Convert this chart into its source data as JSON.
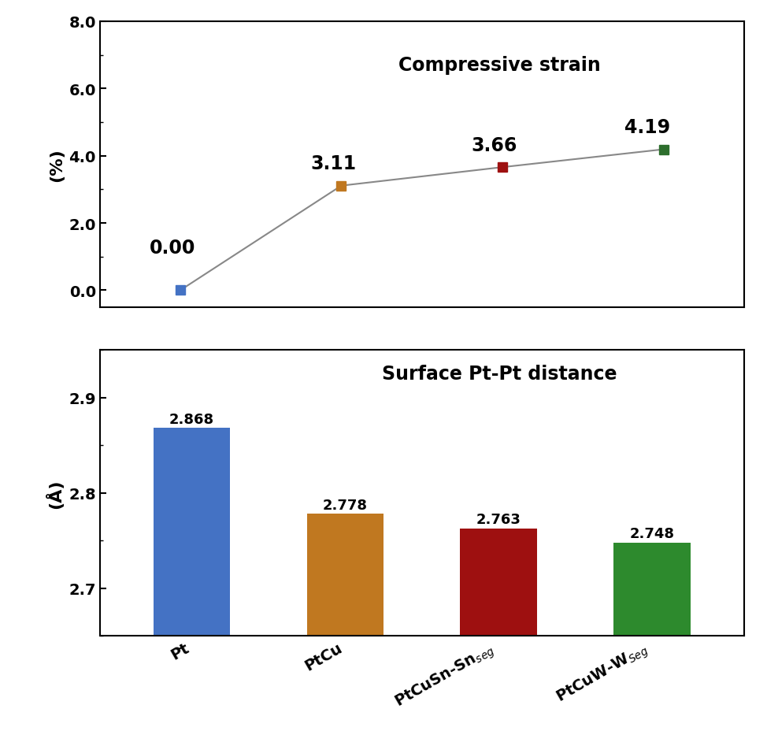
{
  "line_x": [
    0,
    1,
    2,
    3
  ],
  "line_y": [
    0.0,
    3.11,
    3.66,
    4.19
  ],
  "line_labels": [
    "0.00",
    "3.11",
    "3.66",
    "4.19"
  ],
  "line_label_offsets": [
    [
      -0.05,
      1.0
    ],
    [
      -0.05,
      0.38
    ],
    [
      -0.05,
      0.38
    ],
    [
      -0.1,
      0.38
    ]
  ],
  "line_colors": [
    "#4472c4",
    "#c07820",
    "#9e1010",
    "#2d6e2d"
  ],
  "bar_values": [
    2.868,
    2.778,
    2.763,
    2.748
  ],
  "bar_labels": [
    "2.868",
    "2.778",
    "2.763",
    "2.748"
  ],
  "bar_colors": [
    "#4472c4",
    "#c07820",
    "#9e1010",
    "#2d8a2d"
  ],
  "line_title": "Compressive strain",
  "bar_title": "Surface Pt-Pt distance",
  "line_ylabel": "(%)",
  "bar_ylabel": "(Å)",
  "line_ylim": [
    -0.5,
    8.0
  ],
  "line_yticks": [
    0.0,
    2.0,
    4.0,
    6.0,
    8.0
  ],
  "line_ytick_labels": [
    "0.0",
    "2.0",
    "4.0",
    "6.0",
    "8.0"
  ],
  "bar_ylim": [
    2.65,
    2.95
  ],
  "bar_yticks": [
    2.7,
    2.8,
    2.9
  ],
  "bar_ytick_labels": [
    "2.7",
    "2.8",
    "2.9"
  ],
  "line_color": "#888888",
  "marker_size": 9,
  "background_color": "#ffffff",
  "x_labels": [
    "Pt",
    "PtCu",
    "PtCuSn-Sn$_{seg}$",
    "PtCuW-W$_{Seg}$"
  ]
}
